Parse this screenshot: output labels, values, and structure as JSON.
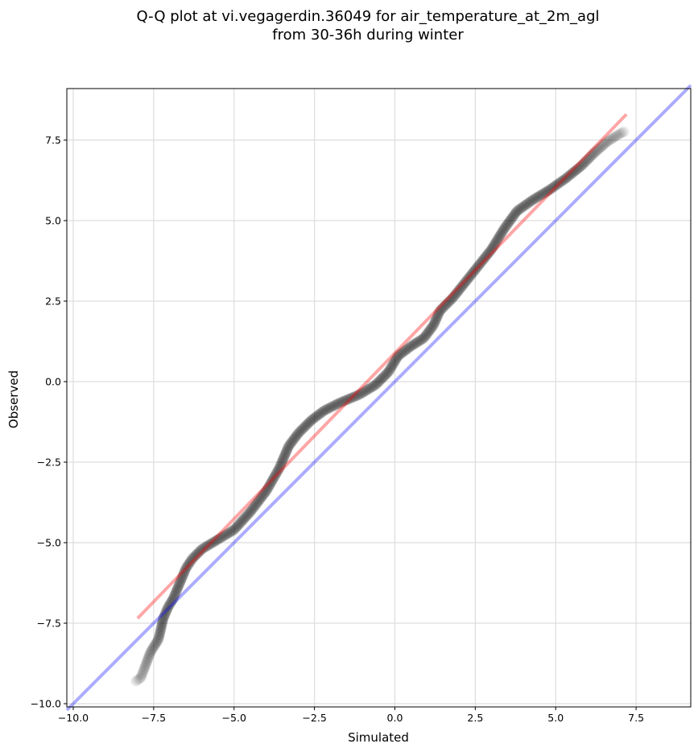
{
  "chart_data": {
    "type": "scatter",
    "title": "Q-Q plot at vi.vegagerdin.36049 for air_temperature_at_2m_agl",
    "subtitle": "from 30-36h during winter",
    "xlabel": "Simulated",
    "ylabel": "Observed",
    "xlim": [
      -10.2,
      9.2
    ],
    "ylim": [
      -10.1,
      9.1
    ],
    "xticks": [
      -10.0,
      -7.5,
      -5.0,
      -2.5,
      0.0,
      2.5,
      5.0,
      7.5
    ],
    "yticks": [
      -10.0,
      -7.5,
      -5.0,
      -2.5,
      0.0,
      2.5,
      5.0,
      7.5
    ],
    "xtick_labels": [
      "−10.0",
      "−7.5",
      "−5.0",
      "−2.5",
      "0.0",
      "2.5",
      "5.0",
      "7.5"
    ],
    "ytick_labels": [
      "−10.0",
      "−7.5",
      "−5.0",
      "−2.5",
      "0.0",
      "2.5",
      "5.0",
      "7.5"
    ],
    "grid": true,
    "colors": {
      "points": "#000000",
      "fit_line": "#ff0000",
      "identity_line": "#0000ff",
      "grid": "#dddddd"
    },
    "identity_line": {
      "x": [
        -10.2,
        9.2
      ],
      "y": [
        -10.2,
        9.2
      ]
    },
    "fit_line": {
      "x": [
        -8.0,
        7.2
      ],
      "y": [
        -7.35,
        8.3
      ]
    },
    "quantile_curve": [
      [
        -8.05,
        -9.3
      ],
      [
        -7.9,
        -9.2
      ],
      [
        -7.75,
        -8.8
      ],
      [
        -7.6,
        -8.4
      ],
      [
        -7.35,
        -8.0
      ],
      [
        -7.2,
        -7.35
      ],
      [
        -7.05,
        -7.0
      ],
      [
        -6.9,
        -6.75
      ],
      [
        -6.75,
        -6.4
      ],
      [
        -6.6,
        -6.05
      ],
      [
        -6.5,
        -5.8
      ],
      [
        -6.3,
        -5.5
      ],
      [
        -6.0,
        -5.2
      ],
      [
        -5.5,
        -4.9
      ],
      [
        -5.0,
        -4.6
      ],
      [
        -4.5,
        -4.05
      ],
      [
        -4.0,
        -3.4
      ],
      [
        -3.6,
        -2.7
      ],
      [
        -3.3,
        -2.0
      ],
      [
        -3.0,
        -1.6
      ],
      [
        -2.6,
        -1.2
      ],
      [
        -2.2,
        -0.9
      ],
      [
        -1.7,
        -0.65
      ],
      [
        -1.1,
        -0.4
      ],
      [
        -0.6,
        -0.1
      ],
      [
        -0.2,
        0.3
      ],
      [
        0.1,
        0.8
      ],
      [
        0.5,
        1.1
      ],
      [
        0.9,
        1.35
      ],
      [
        1.2,
        1.75
      ],
      [
        1.4,
        2.2
      ],
      [
        1.8,
        2.6
      ],
      [
        2.2,
        3.1
      ],
      [
        2.6,
        3.6
      ],
      [
        3.0,
        4.1
      ],
      [
        3.4,
        4.75
      ],
      [
        3.8,
        5.3
      ],
      [
        4.3,
        5.65
      ],
      [
        4.8,
        5.95
      ],
      [
        5.3,
        6.3
      ],
      [
        5.8,
        6.7
      ],
      [
        6.2,
        7.1
      ],
      [
        6.6,
        7.45
      ],
      [
        7.0,
        7.7
      ],
      [
        7.12,
        7.76
      ]
    ]
  }
}
